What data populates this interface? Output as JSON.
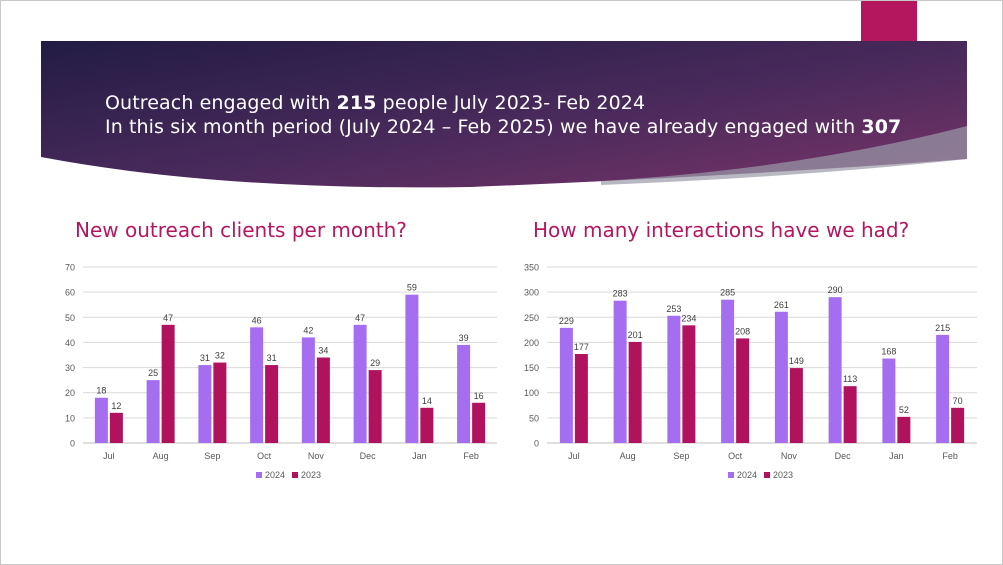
{
  "headline": {
    "line1_prefix": "Outreach engaged with ",
    "line1_bold": "215",
    "line1_suffix": " people July 2023- Feb 2024",
    "line2_prefix": "In this six month period (July 2024 – Feb 2025) we have already engaged with ",
    "line2_bold": "307"
  },
  "colors": {
    "series_2024": "#a56ef0",
    "series_2023": "#b0125e",
    "accent": "#b5175f",
    "title": "#b5175f",
    "banner_dark": "#27204a",
    "banner_mid": "#6b2f63"
  },
  "chart_data": [
    {
      "type": "bar",
      "title": "New outreach clients per month?",
      "categories": [
        "Jul",
        "Aug",
        "Sep",
        "Oct",
        "Nov",
        "Dec",
        "Jan",
        "Feb"
      ],
      "series": [
        {
          "name": "2024",
          "values": [
            18,
            25,
            31,
            46,
            42,
            47,
            59,
            39
          ]
        },
        {
          "name": "2023",
          "values": [
            12,
            47,
            32,
            31,
            34,
            29,
            14,
            16
          ]
        }
      ],
      "ylim": [
        0,
        70
      ],
      "yticks": [
        0,
        10,
        20,
        30,
        40,
        50,
        60,
        70
      ],
      "xlabel": "",
      "ylabel": "",
      "grid": true,
      "legend": "bottom"
    },
    {
      "type": "bar",
      "title": "How many interactions have we had?",
      "categories": [
        "Jul",
        "Aug",
        "Sep",
        "Oct",
        "Nov",
        "Dec",
        "Jan",
        "Feb"
      ],
      "series": [
        {
          "name": "2024",
          "values": [
            229,
            283,
            253,
            285,
            261,
            290,
            168,
            215
          ]
        },
        {
          "name": "2023",
          "values": [
            177,
            201,
            234,
            208,
            149,
            113,
            52,
            70
          ]
        }
      ],
      "ylim": [
        0,
        350
      ],
      "yticks": [
        0,
        50,
        100,
        150,
        200,
        250,
        300,
        350
      ],
      "xlabel": "",
      "ylabel": "",
      "grid": true,
      "legend": "bottom"
    }
  ]
}
